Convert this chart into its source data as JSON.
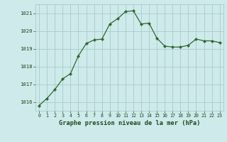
{
  "x": [
    0,
    1,
    2,
    3,
    4,
    5,
    6,
    7,
    8,
    9,
    10,
    11,
    12,
    13,
    14,
    15,
    16,
    17,
    18,
    19,
    20,
    21,
    22,
    23
  ],
  "y": [
    1015.8,
    1016.2,
    1016.7,
    1017.3,
    1017.6,
    1018.6,
    1019.3,
    1019.5,
    1019.55,
    1020.4,
    1020.7,
    1021.1,
    1021.15,
    1020.4,
    1020.45,
    1019.6,
    1019.15,
    1019.1,
    1019.1,
    1019.2,
    1019.55,
    1019.45,
    1019.45,
    1019.35
  ],
  "line_color": "#2d6a2d",
  "marker_color": "#2d6a2d",
  "bg_color": "#ceeaea",
  "grid_color": "#a8cccc",
  "xlabel": "Graphe pression niveau de la mer (hPa)",
  "xlabel_color": "#1a4a1a",
  "tick_color": "#1a4a1a",
  "ylim_min": 1015.5,
  "ylim_max": 1021.5,
  "yticks": [
    1016,
    1017,
    1018,
    1019,
    1020,
    1021
  ],
  "xticks": [
    0,
    1,
    2,
    3,
    4,
    5,
    6,
    7,
    8,
    9,
    10,
    11,
    12,
    13,
    14,
    15,
    16,
    17,
    18,
    19,
    20,
    21,
    22,
    23
  ]
}
